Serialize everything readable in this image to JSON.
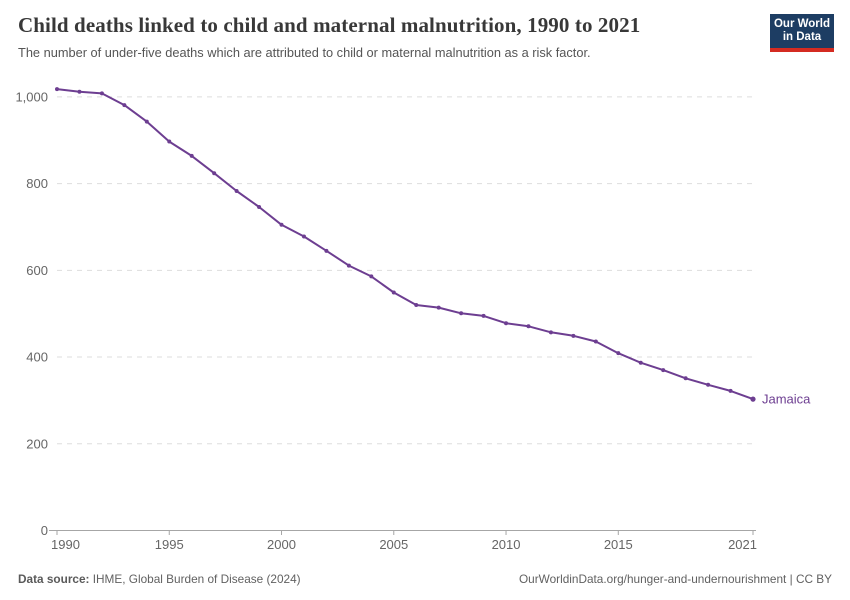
{
  "header": {
    "title": "Child deaths linked to child and maternal malnutrition, 1990 to 2021",
    "subtitle": "The number of under-five deaths which are attributed to child or maternal malnutrition as a risk factor.",
    "logo": {
      "line1": "Our World",
      "line2": "in Data",
      "bg_color": "#1d3d63",
      "accent_color": "#d42b21"
    }
  },
  "chart_data": {
    "type": "line",
    "title": "Child deaths linked to child and maternal malnutrition, 1990 to 2021",
    "x": [
      1990,
      1991,
      1992,
      1993,
      1994,
      1995,
      1996,
      1997,
      1998,
      1999,
      2000,
      2001,
      2002,
      2003,
      2004,
      2005,
      2006,
      2007,
      2008,
      2009,
      2010,
      2011,
      2012,
      2013,
      2014,
      2015,
      2016,
      2017,
      2018,
      2019,
      2020,
      2021
    ],
    "series": [
      {
        "name": "Jamaica",
        "color": "#6d3e91",
        "values": [
          1018,
          1012,
          1008,
          981,
          943,
          897,
          864,
          824,
          783,
          746,
          705,
          678,
          645,
          611,
          586,
          549,
          520,
          514,
          501,
          495,
          478,
          471,
          457,
          449,
          436,
          409,
          387,
          370,
          351,
          336,
          322,
          303
        ]
      }
    ],
    "xticks": [
      1990,
      1995,
      2000,
      2005,
      2010,
      2015,
      2021
    ],
    "yticks": [
      0,
      200,
      400,
      600,
      800,
      1000
    ],
    "ytick_labels": [
      "0",
      "200",
      "400",
      "600",
      "800",
      "1,000"
    ],
    "ylim": [
      0,
      1000
    ],
    "xlim": [
      1990,
      2021
    ],
    "grid": "horizontal-dashed",
    "legend_position": "end-of-line-label",
    "end_label": "Jamaica",
    "colors": {
      "grid": "#dddddd",
      "axis": "#a6a6a6",
      "tick_text": "#666666"
    }
  },
  "footer": {
    "source_label": "Data source:",
    "source_text": " IHME, Global Burden of Disease (2024)",
    "link_text": "OurWorldinData.org/hunger-and-undernourishment | CC BY"
  }
}
